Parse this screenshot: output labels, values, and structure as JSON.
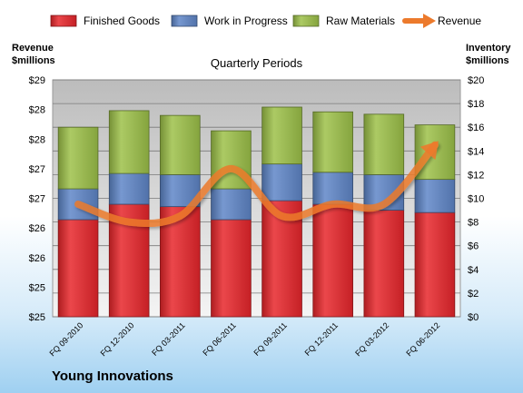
{
  "chart_data": {
    "type": "bar",
    "stacked": true,
    "title": "Quarterly Periods",
    "company": "Young Innovations",
    "categories": [
      "FQ 09-2010",
      "FQ 12-2010",
      "FQ 03-2011",
      "FQ 06-2011",
      "FQ 09-2011",
      "FQ 12-2011",
      "FQ 03-2012",
      "FQ 06-2012"
    ],
    "y_left": {
      "label_line1": "Revenue",
      "label_line2": "$millions",
      "ticks": [
        "$29",
        "$28",
        "$28",
        "$27",
        "$27",
        "$26",
        "$26",
        "$25",
        "$25"
      ]
    },
    "y_right": {
      "label_line1": "Inventory",
      "label_line2": "$millions",
      "ylim": [
        0,
        20
      ],
      "ticks": [
        "$20",
        "$18",
        "$16",
        "$14",
        "$12",
        "$10",
        "$8",
        "$6",
        "$4",
        "$2",
        "$0"
      ]
    },
    "series": [
      {
        "name": "Finished Goods",
        "color": "#e8262b",
        "values": [
          8.2,
          9.5,
          9.3,
          8.2,
          9.8,
          9.5,
          9.0,
          8.8
        ]
      },
      {
        "name": "Work in Progress",
        "color": "#5f86c8",
        "values": [
          2.6,
          2.6,
          2.7,
          2.6,
          3.1,
          2.7,
          3.0,
          2.8
        ]
      },
      {
        "name": "Raw Materials",
        "color": "#9dc149",
        "values": [
          5.2,
          5.3,
          5.0,
          4.9,
          4.8,
          5.1,
          5.1,
          4.6
        ]
      }
    ],
    "revenue": {
      "name": "Revenue",
      "color": "#ec7a2c",
      "values": [
        26.9,
        26.6,
        26.7,
        27.5,
        26.7,
        26.9,
        26.9,
        27.9
      ],
      "ylim": [
        25.0,
        29.0
      ]
    },
    "grid": true,
    "legend_position": "top"
  }
}
